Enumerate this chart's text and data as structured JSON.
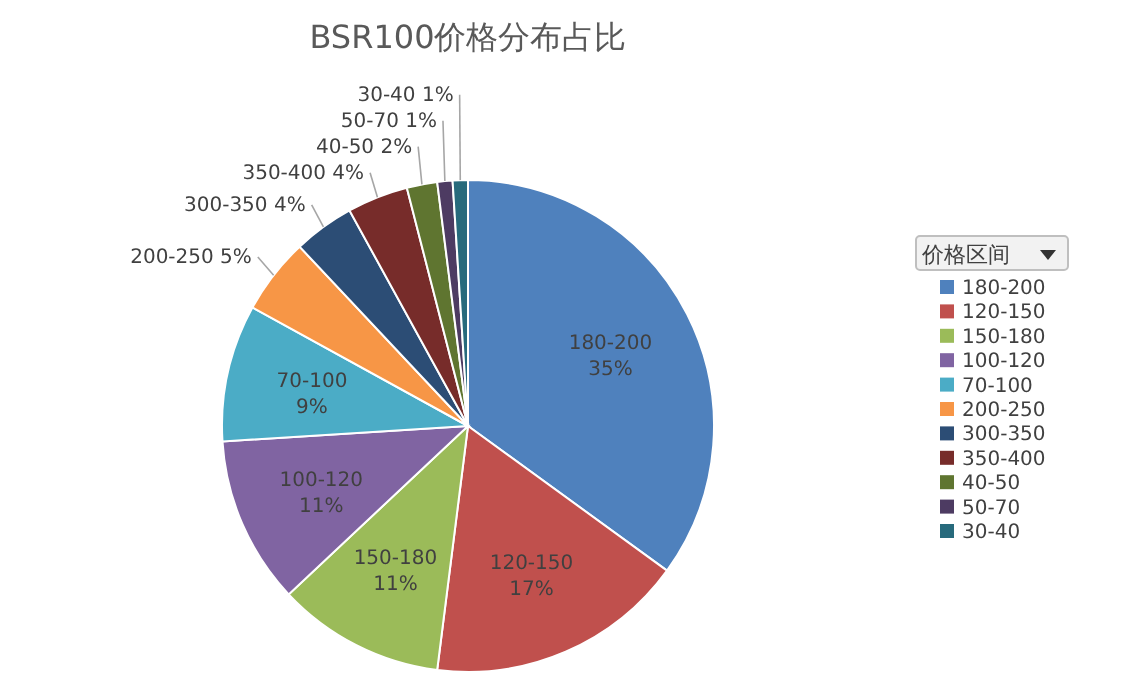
{
  "chart_data": {
    "type": "pie",
    "title": "BSR100价格分布占比",
    "legend_title": "价格区间",
    "legend": "right",
    "categories": [
      "180-200",
      "120-150",
      "150-180",
      "100-120",
      "70-100",
      "200-250",
      "300-350",
      "350-400",
      "40-50",
      "50-70",
      "30-40"
    ],
    "values": [
      35,
      17,
      11,
      11,
      9,
      5,
      4,
      4,
      2,
      1,
      1
    ],
    "value_labels": [
      "35%",
      "17%",
      "11%",
      "11%",
      "9%",
      "5%",
      "4%",
      "4%",
      "2%",
      "1%",
      "1%"
    ],
    "colors": [
      "#4f81bd",
      "#c0504d",
      "#9bbb59",
      "#8064a2",
      "#4bacc6",
      "#f79646",
      "#2c4d75",
      "#772c2a",
      "#5f7530",
      "#4d3b62",
      "#276a7c"
    ]
  }
}
